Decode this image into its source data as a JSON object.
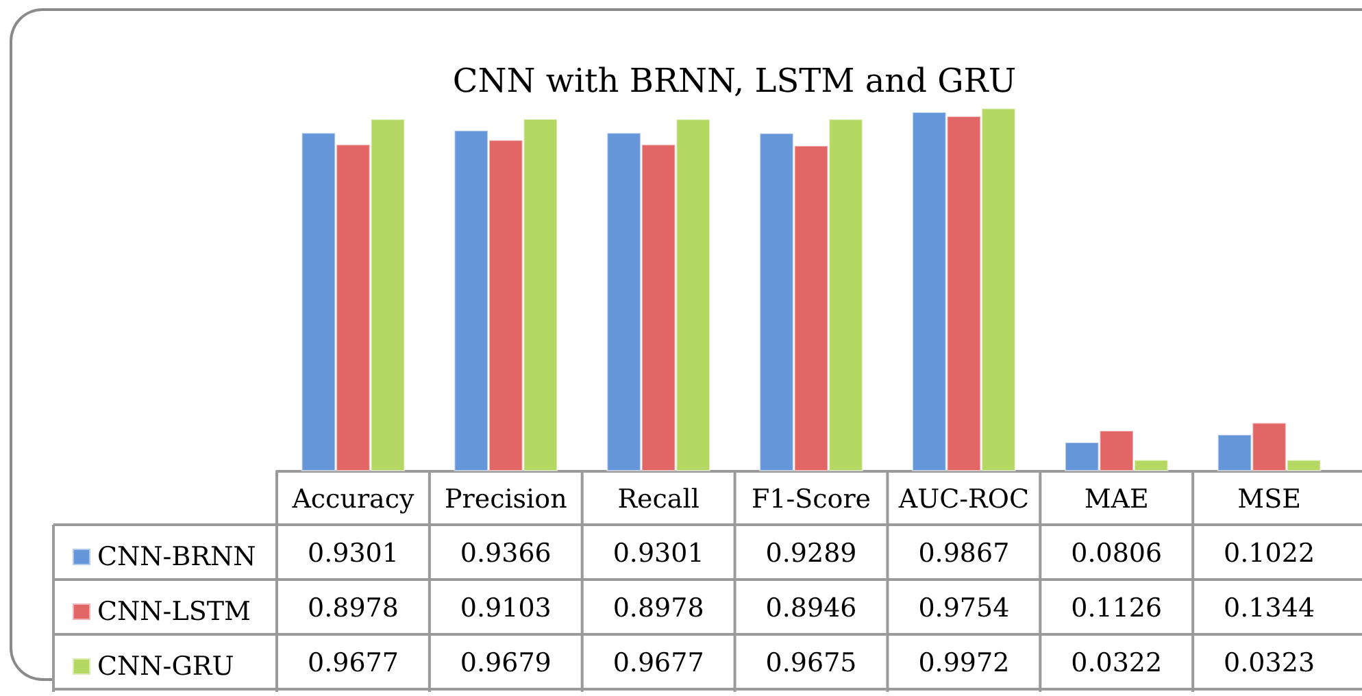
{
  "chart_data": {
    "type": "bar",
    "title": "CNN with BRNN, LSTM and GRU",
    "categories": [
      "Accuracy",
      "Precision",
      "Recall",
      "F1-Score",
      "AUC-ROC",
      "MAE",
      "MSE"
    ],
    "series": [
      {
        "name": "CNN-BRNN",
        "color": "#6596da",
        "values": [
          0.9301,
          0.9366,
          0.9301,
          0.9289,
          0.9867,
          0.0806,
          0.1022
        ]
      },
      {
        "name": "CNN-LSTM",
        "color": "#e26666",
        "values": [
          0.8978,
          0.9103,
          0.8978,
          0.8946,
          0.9754,
          0.1126,
          0.1344
        ]
      },
      {
        "name": "CNN-GRU",
        "color": "#b5d862",
        "values": [
          0.9677,
          0.9679,
          0.9677,
          0.9675,
          0.9972,
          0.0322,
          0.0323
        ]
      }
    ],
    "data_labels": true,
    "legend": "bottom left"
  }
}
